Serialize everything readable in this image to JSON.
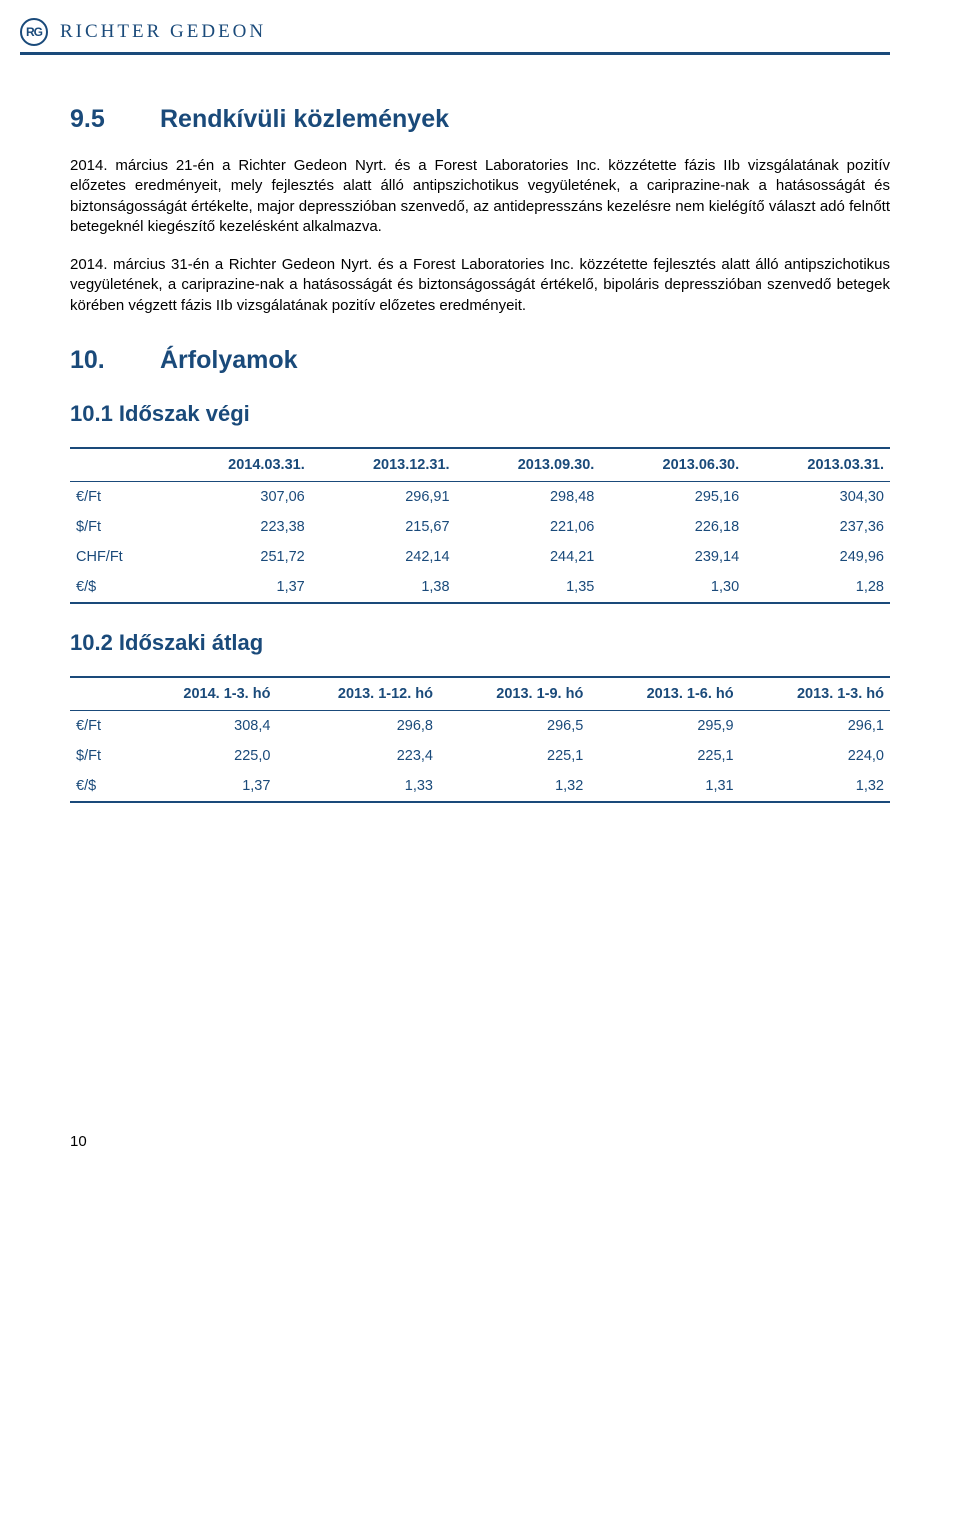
{
  "header": {
    "logo_text": "RG",
    "company": "RICHTER GEDEON"
  },
  "section95": {
    "number": "9.5",
    "title": "Rendkívüli közlemények",
    "para1": "2014. március 21-én a Richter Gedeon Nyrt. és a Forest Laboratories Inc. közzétette fázis IIb vizsgálatának pozitív előzetes eredményeit, mely fejlesztés alatt álló antipszichotikus vegyületének, a cariprazine-nak a hatásosságát és biztonságosságát értékelte, major depresszióban szenvedő, az antidepresszáns kezelésre nem kielégítő választ adó felnőtt betegeknél kiegészítő kezelésként alkalmazva.",
    "para2": "2014. március 31-én a Richter Gedeon Nyrt. és a Forest Laboratories Inc. közzétette fejlesztés alatt álló antipszichotikus vegyületének, a cariprazine-nak a hatásosságát és biztonságosságát értékelő, bipoláris depresszióban szenvedő betegek körében végzett fázis IIb vizsgálatának pozitív előzetes eredményeit."
  },
  "section10": {
    "number": "10.",
    "title": "Árfolyamok"
  },
  "sub101": {
    "title": "10.1 Időszak végi",
    "columns": [
      "",
      "2014.03.31.",
      "2013.12.31.",
      "2013.09.30.",
      "2013.06.30.",
      "2013.03.31."
    ],
    "rows": [
      [
        "€/Ft",
        "307,06",
        "296,91",
        "298,48",
        "295,16",
        "304,30"
      ],
      [
        "$/Ft",
        "223,38",
        "215,67",
        "221,06",
        "226,18",
        "237,36"
      ],
      [
        "CHF/Ft",
        "251,72",
        "242,14",
        "244,21",
        "239,14",
        "249,96"
      ],
      [
        "€/$",
        "1,37",
        "1,38",
        "1,35",
        "1,30",
        "1,28"
      ]
    ]
  },
  "sub102": {
    "title": "10.2 Időszaki átlag",
    "columns": [
      "",
      "2014. 1-3. hó",
      "2013. 1-12. hó",
      "2013. 1-9. hó",
      "2013. 1-6. hó",
      "2013. 1-3. hó"
    ],
    "rows": [
      [
        "€/Ft",
        "308,4",
        "296,8",
        "296,5",
        "295,9",
        "296,1"
      ],
      [
        "$/Ft",
        "225,0",
        "223,4",
        "225,1",
        "225,1",
        "224,0"
      ],
      [
        "€/$",
        "1,37",
        "1,33",
        "1,32",
        "1,31",
        "1,32"
      ]
    ]
  },
  "footer": {
    "page_number": "10"
  },
  "colors": {
    "primary": "#1a4a7a",
    "text": "#000000",
    "background": "#ffffff"
  }
}
